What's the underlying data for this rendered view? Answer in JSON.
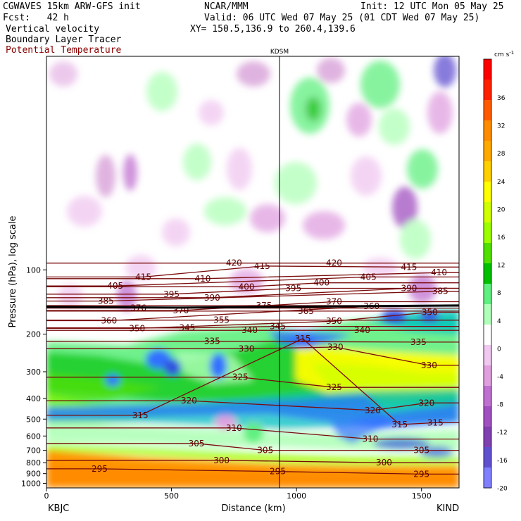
{
  "header": {
    "model_line": "CGWAVES 15km ARW-GFS init",
    "org": "NCAR/MMM",
    "init": "Init: 12 UTC Mon 05 May 25",
    "fcst": "Fcst:   42 h",
    "valid": "Valid: 06 UTC Wed 07 May 25 (01 CDT Wed 07 May 25)",
    "field1": "Vertical velocity",
    "field2": "Boundary Layer Tracer",
    "field3": "Potential Temperature",
    "xy": "XY= 150.5,136.9 to 260.4,139.6",
    "station_mid": "KDSM",
    "station_left": "KBJC",
    "station_right": "KIND",
    "colors": {
      "field3": "#8b0000"
    }
  },
  "chart_data": {
    "type": "heatmap",
    "title": "",
    "xlabel": "Distance (km)",
    "ylabel": "Pressure (hPa), log scale",
    "xlim": [
      0,
      1650
    ],
    "ylim": [
      1050,
      10
    ],
    "y_scale": "log",
    "x_ticks": [
      0,
      500,
      1000,
      1500
    ],
    "y_ticks": [
      100,
      200,
      300,
      400,
      500,
      600,
      700,
      800,
      900,
      1000
    ],
    "vertical_marker": {
      "x": 932,
      "label": "KDSM"
    },
    "tropopause_line": {
      "pressure": 148
    },
    "colorbar": {
      "unit": "cm s",
      "unit_sup": "-1",
      "ticks": [
        36,
        32,
        28,
        24,
        20,
        16,
        12,
        8,
        4,
        0,
        -4,
        -8,
        -12,
        -16,
        -20
      ],
      "colors": [
        "#ff0000",
        "#ff2000",
        "#ff5a00",
        "#ff8c00",
        "#ffa800",
        "#ffd000",
        "#ffff00",
        "#d0ff00",
        "#9cff00",
        "#50e000",
        "#00c000",
        "#60f080",
        "#b0ffb8",
        "#ffffff",
        "#f0c8f0",
        "#e0a0e0",
        "#c070d0",
        "#a050c0",
        "#8040b0",
        "#6050d0",
        "#8080ff"
      ]
    },
    "theta_labels": [
      {
        "v": "420",
        "x": 300,
        "p": 93
      },
      {
        "v": "415",
        "x": 345,
        "p": 96
      },
      {
        "v": "415",
        "x": 155,
        "p": 108
      },
      {
        "v": "410",
        "x": 250,
        "p": 110
      },
      {
        "v": "405",
        "x": 110,
        "p": 119
      },
      {
        "v": "400",
        "x": 320,
        "p": 120
      },
      {
        "v": "395",
        "x": 200,
        "p": 130
      },
      {
        "v": "390",
        "x": 265,
        "p": 135
      },
      {
        "v": "395",
        "x": 395,
        "p": 122
      },
      {
        "v": "420",
        "x": 460,
        "p": 93
      },
      {
        "v": "415",
        "x": 580,
        "p": 97
      },
      {
        "v": "410",
        "x": 628,
        "p": 103
      },
      {
        "v": "405",
        "x": 515,
        "p": 108
      },
      {
        "v": "400",
        "x": 440,
        "p": 115
      },
      {
        "v": "390",
        "x": 580,
        "p": 122
      },
      {
        "v": "385",
        "x": 630,
        "p": 126
      },
      {
        "v": "385",
        "x": 95,
        "p": 140
      },
      {
        "v": "376",
        "x": 147,
        "p": 151
      },
      {
        "v": "370",
        "x": 215,
        "p": 155
      },
      {
        "v": "375",
        "x": 348,
        "p": 147
      },
      {
        "v": "365",
        "x": 415,
        "p": 156
      },
      {
        "v": "370",
        "x": 460,
        "p": 141
      },
      {
        "v": "360",
        "x": 520,
        "p": 148
      },
      {
        "v": "350",
        "x": 613,
        "p": 158
      },
      {
        "v": "360",
        "x": 100,
        "p": 173
      },
      {
        "v": "355",
        "x": 280,
        "p": 172
      },
      {
        "v": "350",
        "x": 145,
        "p": 188
      },
      {
        "v": "345",
        "x": 225,
        "p": 187
      },
      {
        "v": "350",
        "x": 460,
        "p": 174
      },
      {
        "v": "345",
        "x": 370,
        "p": 184
      },
      {
        "v": "340",
        "x": 325,
        "p": 192
      },
      {
        "v": "340",
        "x": 505,
        "p": 192
      },
      {
        "v": "335",
        "x": 265,
        "p": 216
      },
      {
        "v": "335",
        "x": 595,
        "p": 218
      },
      {
        "v": "330",
        "x": 320,
        "p": 234
      },
      {
        "v": "330",
        "x": 462,
        "p": 230
      },
      {
        "v": "315",
        "x": 410,
        "p": 210
      },
      {
        "v": "330",
        "x": 612,
        "p": 280
      },
      {
        "v": "325",
        "x": 310,
        "p": 318
      },
      {
        "v": "325",
        "x": 460,
        "p": 355
      },
      {
        "v": "320",
        "x": 228,
        "p": 410
      },
      {
        "v": "320",
        "x": 522,
        "p": 455
      },
      {
        "v": "320",
        "x": 608,
        "p": 420
      },
      {
        "v": "315",
        "x": 150,
        "p": 480
      },
      {
        "v": "315",
        "x": 565,
        "p": 530
      },
      {
        "v": "315",
        "x": 622,
        "p": 520
      },
      {
        "v": "310",
        "x": 300,
        "p": 550
      },
      {
        "v": "310",
        "x": 518,
        "p": 620
      },
      {
        "v": "305",
        "x": 240,
        "p": 650
      },
      {
        "v": "305",
        "x": 350,
        "p": 700
      },
      {
        "v": "305",
        "x": 600,
        "p": 700
      },
      {
        "v": "300",
        "x": 280,
        "p": 780
      },
      {
        "v": "300",
        "x": 540,
        "p": 800
      },
      {
        "v": "295",
        "x": 85,
        "p": 855
      },
      {
        "v": "295",
        "x": 370,
        "p": 880
      },
      {
        "v": "295",
        "x": 600,
        "p": 905
      }
    ]
  }
}
